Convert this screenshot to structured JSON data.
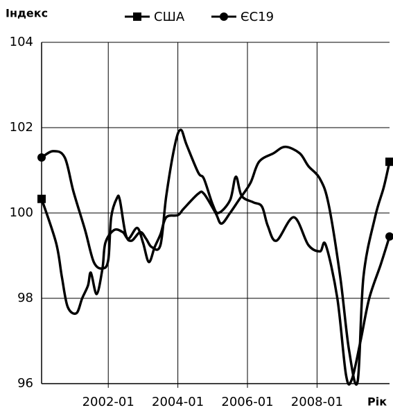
{
  "chart_data": {
    "type": "line",
    "y_label": "Індекс",
    "x_label": "Рік",
    "xlim": [
      "2000-02",
      "2010-02"
    ],
    "xticks": [
      "2002-01",
      "2004-01",
      "2006-01",
      "2008-01"
    ],
    "ylim": [
      96,
      104
    ],
    "yticks": [
      96,
      98,
      100,
      102,
      104
    ],
    "grid": true,
    "legend": "top",
    "series": [
      {
        "name": "США",
        "color": "#000000",
        "marker": "square",
        "x": [
          "2000-02",
          "2000-07",
          "2000-09",
          "2000-11",
          "2001-02",
          "2001-04",
          "2001-06",
          "2001-07",
          "2001-09",
          "2001-11",
          "2001-12",
          "2002-03",
          "2002-06",
          "2002-08",
          "2002-11",
          "2003-01",
          "2003-03",
          "2003-05",
          "2003-07",
          "2003-09",
          "2004-01",
          "2004-03",
          "2004-08",
          "2004-10",
          "2005-02",
          "2005-04",
          "2005-07",
          "2005-10",
          "2006-02",
          "2006-05",
          "2006-10",
          "2007-02",
          "2007-07",
          "2007-10",
          "2008-02",
          "2008-05",
          "2008-09",
          "2008-12",
          "2009-03",
          "2009-05",
          "2009-09",
          "2009-12",
          "2010-02"
        ],
        "values": [
          100.33,
          99.3,
          98.5,
          97.8,
          97.65,
          98.0,
          98.3,
          98.6,
          98.1,
          98.7,
          99.3,
          99.6,
          99.55,
          99.4,
          99.65,
          99.3,
          98.85,
          99.2,
          99.5,
          99.9,
          99.95,
          100.1,
          100.45,
          100.45,
          100.0,
          99.75,
          100.0,
          100.3,
          100.7,
          101.2,
          101.4,
          101.55,
          101.4,
          101.1,
          100.8,
          100.2,
          98.5,
          96.8,
          96.05,
          98.5,
          99.9,
          100.6,
          101.2
        ]
      },
      {
        "name": "ЄС19",
        "color": "#000000",
        "marker": "circle",
        "x": [
          "2000-02",
          "2000-06",
          "2000-10",
          "2001-01",
          "2001-05",
          "2001-08",
          "2001-11",
          "2002-01",
          "2002-02",
          "2002-04",
          "2002-05",
          "2002-07",
          "2002-09",
          "2002-12",
          "2003-02",
          "2003-04",
          "2003-07",
          "2003-09",
          "2003-12",
          "2004-02",
          "2004-04",
          "2004-08",
          "2004-10",
          "2005-01",
          "2005-03",
          "2005-07",
          "2005-09",
          "2005-11",
          "2006-03",
          "2006-06",
          "2006-08",
          "2006-11",
          "2007-05",
          "2007-10",
          "2008-02",
          "2008-04",
          "2008-08",
          "2008-11",
          "2009-01",
          "2009-04",
          "2009-07",
          "2009-11",
          "2010-02"
        ],
        "values": [
          101.3,
          101.45,
          101.3,
          100.5,
          99.6,
          98.85,
          98.7,
          98.9,
          99.9,
          100.35,
          100.3,
          99.5,
          99.35,
          99.55,
          99.4,
          99.2,
          99.25,
          100.4,
          101.6,
          101.95,
          101.6,
          100.95,
          100.8,
          100.2,
          100.0,
          100.3,
          100.85,
          100.4,
          100.25,
          100.15,
          99.7,
          99.35,
          99.9,
          99.25,
          99.1,
          99.25,
          98.0,
          96.2,
          96.1,
          97.0,
          98.0,
          98.8,
          99.45
        ]
      }
    ]
  }
}
